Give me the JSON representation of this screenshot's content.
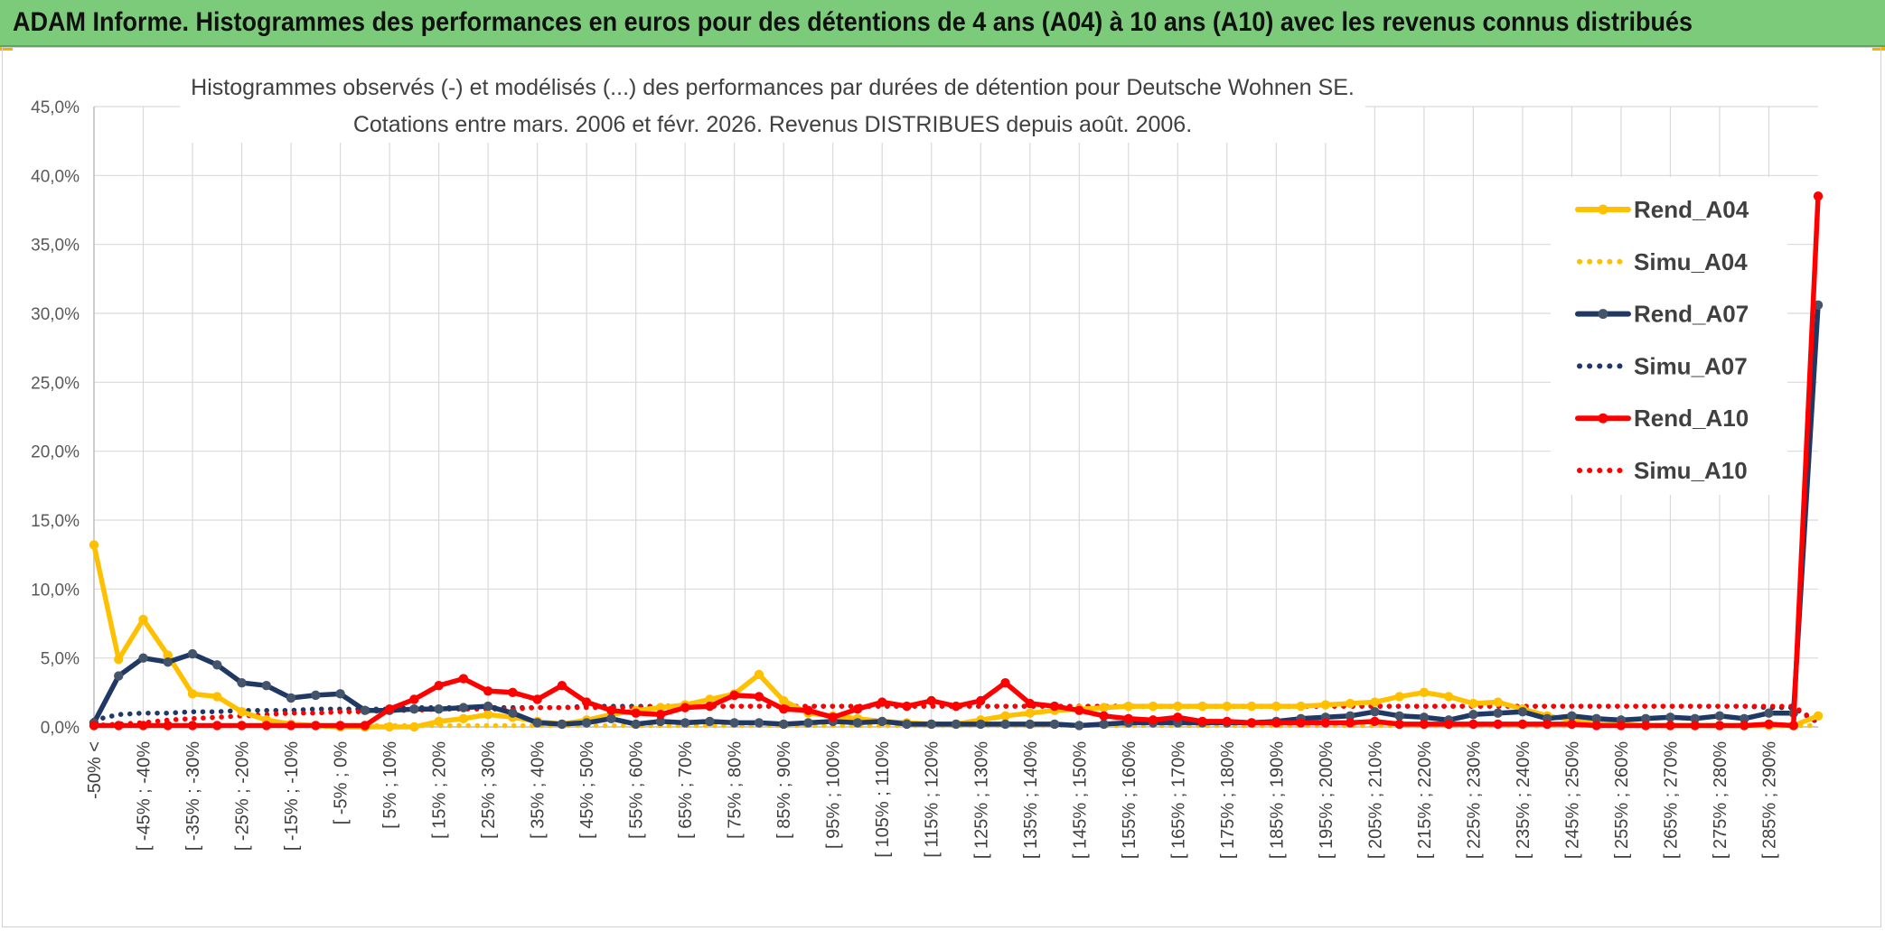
{
  "banner": {
    "title": "ADAM Informe. Histogrammes des performances en euros pour des détentions de 4 ans (A04) à 10 ans (A10) avec les revenus connus distribués"
  },
  "colors": {
    "A04": "#ffc000",
    "A07": "#1f3864",
    "A10": "#ff0000",
    "banner_bg": "#7ccb7b"
  },
  "chart_data": {
    "type": "line",
    "title": [
      "Histogrammes observés (-) et modélisés (...) des performances par durées de détention pour Deutsche Wohnen SE.",
      "Cotations entre mars. 2006 et févr. 2026. Revenus DISTRIBUES depuis août. 2006."
    ],
    "xlabel": "",
    "ylabel": "",
    "ylim": [
      0,
      45
    ],
    "y_ticks": [
      "0,0%",
      "5,0%",
      "10,0%",
      "15,0%",
      "20,0%",
      "25,0%",
      "30,0%",
      "35,0%",
      "40,0%",
      "45,0%"
    ],
    "grid": true,
    "legend_position": "right",
    "x_tick_labels": [
      "-50% <",
      "[ -45% ; -40%",
      "[ -35% ; -30%",
      "[ -25% ; -20%",
      "[ -15% ; -10%",
      "[ -5% ; 0%",
      "[ 5% ; 10%",
      "[ 15% ; 20%",
      "[ 25% ; 30%",
      "[ 35% ; 40%",
      "[ 45% ; 50%",
      "[ 55% ; 60%",
      "[ 65% ; 70%",
      "[ 75% ; 80%",
      "[ 85% ; 90%",
      "[ 95% ; 100%",
      "[ 105% ; 110%",
      "[ 115% ; 120%",
      "[ 125% ; 130%",
      "[ 135% ; 140%",
      "[ 145% ; 150%",
      "[ 155% ; 160%",
      "[ 165% ; 170%",
      "[ 175% ; 180%",
      "[ 185% ; 190%",
      "[ 195% ; 200%",
      "[ 205% ; 210%",
      "[ 215% ; 220%",
      "[ 225% ; 230%",
      "[ 235% ; 240%",
      "[ 245% ; 250%",
      "[ 255% ; 260%",
      "[ 265% ; 270%",
      "[ 275% ; 280%",
      "[ 285% ; 290%"
    ],
    "n_points": 71,
    "series": [
      {
        "name": "Rend_A04",
        "style": "solid",
        "color": "#ffc000",
        "values": [
          13.2,
          4.9,
          7.8,
          5.2,
          2.4,
          2.2,
          1.1,
          0.5,
          0.2,
          0.1,
          0,
          0,
          0,
          0,
          0.4,
          0.6,
          0.9,
          0.7,
          0.4,
          0.2,
          0.5,
          0.9,
          1.2,
          1.4,
          1.6,
          2.0,
          2.4,
          3.8,
          1.9,
          1.0,
          0.8,
          0.6,
          0.4,
          0.3,
          0.2,
          0.2,
          0.5,
          0.8,
          1.0,
          1.2,
          1.3,
          1.4,
          1.5,
          1.5,
          1.5,
          1.5,
          1.5,
          1.5,
          1.5,
          1.5,
          1.6,
          1.7,
          1.8,
          2.2,
          2.5,
          2.2,
          1.7,
          1.8,
          1.3,
          0.8,
          0.5,
          0.3,
          0.2,
          0.1,
          0.1,
          0.1,
          0.1,
          0.1,
          0.1,
          0.1,
          0.8
        ]
      },
      {
        "name": "Simu_A04",
        "style": "dotted",
        "color": "#ffc000",
        "values": [
          0.1,
          0.1,
          0.1,
          0.1,
          0.1,
          0.1,
          0.1,
          0.1,
          0.1,
          0.1,
          0.1,
          0.1,
          0.1,
          0.1,
          0.1,
          0.1,
          0.1,
          0.1,
          0.1,
          0.1,
          0.1,
          0.1,
          0.1,
          0.1,
          0.1,
          0.1,
          0.1,
          0.1,
          0.1,
          0.1,
          0.1,
          0.1,
          0.1,
          0.1,
          0.1,
          0.1,
          0.1,
          0.1,
          0.1,
          0.1,
          0.1,
          0.1,
          0.1,
          0.1,
          0.1,
          0.1,
          0.1,
          0.1,
          0.1,
          0.1,
          0.1,
          0.1,
          0.1,
          0.1,
          0.1,
          0.1,
          0.1,
          0.1,
          0.1,
          0.1,
          0.1,
          0.1,
          0.1,
          0.1,
          0.1,
          0.1,
          0.1,
          0.1,
          0.1,
          0.1,
          0.1
        ]
      },
      {
        "name": "Rend_A07",
        "style": "solid",
        "color": "#1f3864",
        "values": [
          0.3,
          3.7,
          5.0,
          4.7,
          5.3,
          4.5,
          3.2,
          3.0,
          2.1,
          2.3,
          2.4,
          1.2,
          1.2,
          1.3,
          1.3,
          1.4,
          1.5,
          1.0,
          0.3,
          0.2,
          0.3,
          0.6,
          0.2,
          0.4,
          0.3,
          0.4,
          0.3,
          0.3,
          0.2,
          0.3,
          0.4,
          0.3,
          0.4,
          0.2,
          0.2,
          0.2,
          0.2,
          0.2,
          0.2,
          0.2,
          0.1,
          0.2,
          0.3,
          0.3,
          0.3,
          0.3,
          0.3,
          0.3,
          0.4,
          0.6,
          0.7,
          0.8,
          1.1,
          0.8,
          0.7,
          0.5,
          0.9,
          1.0,
          1.1,
          0.6,
          0.8,
          0.6,
          0.5,
          0.6,
          0.7,
          0.6,
          0.8,
          0.6,
          1.0,
          1.0,
          30.6
        ]
      },
      {
        "name": "Simu_A07",
        "style": "dotted",
        "color": "#1f3864",
        "values": [
          0.5,
          0.9,
          1.0,
          1.0,
          1.1,
          1.1,
          1.2,
          1.2,
          1.2,
          1.3,
          1.3,
          1.3,
          1.3,
          1.4,
          1.4,
          1.4,
          1.4,
          1.4,
          1.4,
          1.4,
          1.5,
          1.5,
          1.5,
          1.5,
          1.5,
          1.5,
          1.5,
          1.5,
          1.5,
          1.5,
          1.5,
          1.5,
          1.5,
          1.5,
          1.5,
          1.5,
          1.5,
          1.5,
          1.5,
          1.5,
          1.5,
          1.5,
          1.5,
          1.5,
          1.5,
          1.5,
          1.5,
          1.5,
          1.5,
          1.5,
          1.5,
          1.5,
          1.5,
          1.5,
          1.5,
          1.5,
          1.5,
          1.5,
          1.5,
          1.5,
          1.5,
          1.5,
          1.5,
          1.5,
          1.5,
          1.5,
          1.5,
          1.5,
          1.4,
          1.4,
          0.3
        ]
      },
      {
        "name": "Rend_A10",
        "style": "solid",
        "color": "#ff0000",
        "values": [
          0.1,
          0.1,
          0.1,
          0.1,
          0.1,
          0.1,
          0.1,
          0.1,
          0.1,
          0.1,
          0.1,
          0.1,
          1.3,
          2.0,
          3.0,
          3.5,
          2.6,
          2.5,
          2.0,
          3.0,
          1.8,
          1.2,
          1.0,
          0.9,
          1.4,
          1.5,
          2.3,
          2.2,
          1.3,
          1.2,
          0.7,
          1.3,
          1.8,
          1.5,
          1.9,
          1.5,
          1.9,
          3.2,
          1.7,
          1.5,
          1.2,
          0.8,
          0.6,
          0.5,
          0.7,
          0.4,
          0.4,
          0.3,
          0.3,
          0.3,
          0.3,
          0.3,
          0.4,
          0.2,
          0.2,
          0.2,
          0.2,
          0.2,
          0.2,
          0.2,
          0.2,
          0.1,
          0.1,
          0.1,
          0.1,
          0.1,
          0.1,
          0.1,
          0.2,
          0.1,
          38.5
        ]
      },
      {
        "name": "Simu_A10",
        "style": "dotted",
        "color": "#ff0000",
        "values": [
          0.1,
          0.2,
          0.3,
          0.5,
          0.6,
          0.7,
          0.8,
          0.9,
          1.0,
          1.0,
          1.1,
          1.1,
          1.2,
          1.2,
          1.3,
          1.3,
          1.3,
          1.3,
          1.4,
          1.4,
          1.4,
          1.4,
          1.4,
          1.5,
          1.5,
          1.5,
          1.5,
          1.5,
          1.5,
          1.5,
          1.5,
          1.5,
          1.5,
          1.5,
          1.5,
          1.5,
          1.5,
          1.5,
          1.5,
          1.5,
          1.5,
          1.5,
          1.5,
          1.5,
          1.5,
          1.5,
          1.5,
          1.5,
          1.5,
          1.5,
          1.5,
          1.5,
          1.5,
          1.5,
          1.5,
          1.5,
          1.5,
          1.5,
          1.5,
          1.5,
          1.5,
          1.5,
          1.5,
          1.5,
          1.5,
          1.5,
          1.5,
          1.5,
          1.5,
          1.5,
          0.3
        ]
      }
    ]
  }
}
